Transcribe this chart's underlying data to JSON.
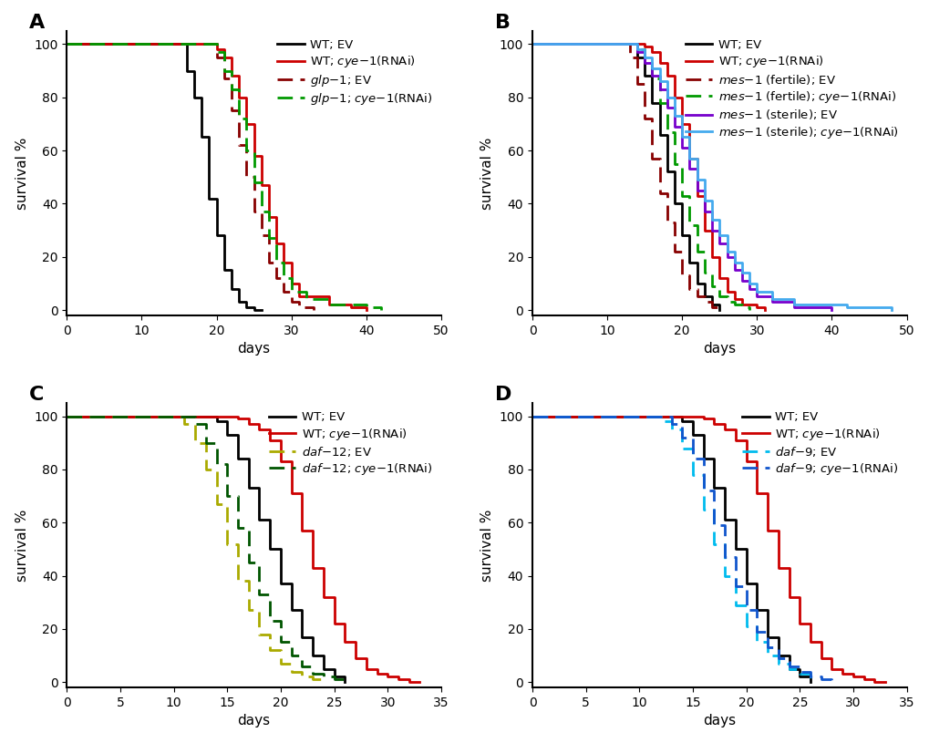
{
  "panels": {
    "A": {
      "title": "A",
      "xlim": [
        0,
        50
      ],
      "ylim": [
        -2,
        105
      ],
      "xticks": [
        0,
        10,
        20,
        30,
        40,
        50
      ],
      "yticks": [
        0,
        20,
        40,
        60,
        80,
        100
      ],
      "xlabel": "days",
      "ylabel": "survival %",
      "series": [
        {
          "label_parts": [
            [
              "WT; EV",
              false
            ]
          ],
          "color": "#000000",
          "linestyle": "solid",
          "x": [
            0,
            15,
            16,
            17,
            18,
            19,
            20,
            21,
            22,
            23,
            24,
            25,
            26
          ],
          "y": [
            100,
            100,
            90,
            80,
            65,
            42,
            28,
            15,
            8,
            3,
            1,
            0,
            0
          ]
        },
        {
          "label_parts": [
            [
              "WT; ",
              false
            ],
            [
              "cye-1",
              true
            ],
            [
              "(RNAi)",
              false
            ]
          ],
          "color": "#cc0000",
          "linestyle": "solid",
          "x": [
            0,
            19,
            20,
            21,
            22,
            23,
            24,
            25,
            26,
            27,
            28,
            29,
            30,
            31,
            35,
            38,
            40
          ],
          "y": [
            100,
            100,
            98,
            95,
            88,
            80,
            70,
            58,
            47,
            35,
            25,
            18,
            10,
            5,
            2,
            1,
            0
          ]
        },
        {
          "label_parts": [
            [
              "glp-1",
              true
            ],
            [
              "; EV",
              false
            ]
          ],
          "color": "#880000",
          "linestyle": "dashed",
          "x": [
            0,
            19,
            20,
            21,
            22,
            23,
            24,
            25,
            26,
            27,
            28,
            29,
            30,
            31,
            33
          ],
          "y": [
            100,
            100,
            95,
            87,
            75,
            62,
            50,
            37,
            28,
            18,
            12,
            7,
            3,
            1,
            0
          ]
        },
        {
          "label_parts": [
            [
              "glp-1",
              true
            ],
            [
              "; ",
              false
            ],
            [
              "cye-1",
              true
            ],
            [
              "(RNAi)",
              false
            ]
          ],
          "color": "#009900",
          "linestyle": "dashed",
          "x": [
            0,
            19,
            20,
            21,
            22,
            23,
            24,
            25,
            26,
            27,
            28,
            29,
            30,
            32,
            35,
            40,
            42
          ],
          "y": [
            100,
            100,
            97,
            90,
            83,
            72,
            60,
            48,
            37,
            27,
            18,
            12,
            7,
            4,
            2,
            1,
            0
          ]
        }
      ]
    },
    "B": {
      "title": "B",
      "xlim": [
        0,
        50
      ],
      "ylim": [
        -2,
        105
      ],
      "xticks": [
        0,
        10,
        20,
        30,
        40,
        50
      ],
      "yticks": [
        0,
        20,
        40,
        60,
        80,
        100
      ],
      "xlabel": "days",
      "ylabel": "survival %",
      "series": [
        {
          "label_parts": [
            [
              "WT; EV",
              false
            ]
          ],
          "color": "#000000",
          "linestyle": "solid",
          "x": [
            0,
            13,
            14,
            15,
            16,
            17,
            18,
            19,
            20,
            21,
            22,
            23,
            24,
            25
          ],
          "y": [
            100,
            100,
            95,
            88,
            78,
            66,
            52,
            40,
            28,
            18,
            10,
            5,
            2,
            0
          ]
        },
        {
          "label_parts": [
            [
              "WT; ",
              false
            ],
            [
              "cye-1",
              true
            ],
            [
              "(RNAi)",
              false
            ]
          ],
          "color": "#cc0000",
          "linestyle": "solid",
          "x": [
            0,
            14,
            15,
            16,
            17,
            18,
            19,
            20,
            21,
            22,
            23,
            24,
            25,
            26,
            27,
            28,
            30,
            31
          ],
          "y": [
            100,
            100,
            99,
            97,
            93,
            88,
            80,
            70,
            57,
            43,
            30,
            20,
            12,
            7,
            4,
            2,
            1,
            0
          ]
        },
        {
          "label_parts": [
            [
              "mes-1",
              true
            ],
            [
              " (fertile); EV",
              false
            ]
          ],
          "color": "#880000",
          "linestyle": "dashed",
          "x": [
            0,
            12,
            13,
            14,
            15,
            16,
            17,
            18,
            19,
            20,
            21,
            22,
            23,
            24,
            25
          ],
          "y": [
            100,
            100,
            95,
            85,
            72,
            57,
            44,
            33,
            22,
            13,
            8,
            5,
            3,
            1,
            0
          ]
        },
        {
          "label_parts": [
            [
              "mes-1",
              true
            ],
            [
              " (fertile); ",
              false
            ],
            [
              "cye-1",
              true
            ],
            [
              "(RNAi)",
              false
            ]
          ],
          "color": "#009900",
          "linestyle": "dashed",
          "x": [
            0,
            13,
            14,
            15,
            16,
            17,
            18,
            19,
            20,
            21,
            22,
            23,
            24,
            25,
            26,
            27,
            28,
            29
          ],
          "y": [
            100,
            100,
            98,
            93,
            87,
            78,
            67,
            55,
            43,
            32,
            22,
            14,
            9,
            5,
            3,
            2,
            1,
            0
          ]
        },
        {
          "label_parts": [
            [
              "mes-1",
              true
            ],
            [
              " (sterile); EV",
              false
            ]
          ],
          "color": "#7700cc",
          "linestyle": "solid",
          "x": [
            0,
            13,
            14,
            15,
            16,
            17,
            18,
            19,
            20,
            21,
            22,
            23,
            24,
            25,
            26,
            27,
            28,
            29,
            30,
            32,
            35,
            40
          ],
          "y": [
            100,
            100,
            97,
            93,
            88,
            83,
            76,
            69,
            61,
            53,
            45,
            37,
            30,
            25,
            20,
            15,
            11,
            8,
            5,
            3,
            1,
            0
          ]
        },
        {
          "label_parts": [
            [
              "mes-1",
              true
            ],
            [
              " (sterile); ",
              false
            ],
            [
              "cye-1",
              true
            ],
            [
              "(RNAi)",
              false
            ]
          ],
          "color": "#44aaee",
          "linestyle": "solid",
          "x": [
            0,
            13,
            14,
            15,
            16,
            17,
            18,
            19,
            20,
            21,
            22,
            23,
            24,
            25,
            26,
            27,
            28,
            29,
            30,
            32,
            35,
            42,
            48
          ],
          "y": [
            100,
            100,
            98,
            95,
            91,
            86,
            80,
            73,
            65,
            57,
            49,
            41,
            34,
            28,
            22,
            18,
            14,
            10,
            7,
            4,
            2,
            1,
            0
          ]
        }
      ]
    },
    "C": {
      "title": "C",
      "xlim": [
        0,
        35
      ],
      "ylim": [
        -2,
        105
      ],
      "xticks": [
        0,
        5,
        10,
        15,
        20,
        25,
        30,
        35
      ],
      "yticks": [
        0,
        20,
        40,
        60,
        80,
        100
      ],
      "xlabel": "days",
      "ylabel": "survival %",
      "series": [
        {
          "label_parts": [
            [
              "WT; EV",
              false
            ]
          ],
          "color": "#000000",
          "linestyle": "solid",
          "x": [
            0,
            13,
            14,
            15,
            16,
            17,
            18,
            19,
            20,
            21,
            22,
            23,
            24,
            25,
            26
          ],
          "y": [
            100,
            100,
            98,
            93,
            84,
            73,
            61,
            50,
            37,
            27,
            17,
            10,
            5,
            2,
            0
          ]
        },
        {
          "label_parts": [
            [
              "WT; ",
              false
            ],
            [
              "cye-1",
              true
            ],
            [
              "(RNAi)",
              false
            ]
          ],
          "color": "#cc0000",
          "linestyle": "solid",
          "x": [
            0,
            14,
            15,
            16,
            17,
            18,
            19,
            20,
            21,
            22,
            23,
            24,
            25,
            26,
            27,
            28,
            29,
            30,
            31,
            32,
            33
          ],
          "y": [
            100,
            100,
            100,
            99,
            97,
            95,
            91,
            83,
            71,
            57,
            43,
            32,
            22,
            15,
            9,
            5,
            3,
            2,
            1,
            0,
            0
          ]
        },
        {
          "label_parts": [
            [
              "daf-12",
              true
            ],
            [
              "; EV",
              false
            ]
          ],
          "color": "#aaaa00",
          "linestyle": "dashed",
          "x": [
            0,
            10,
            11,
            12,
            13,
            14,
            15,
            16,
            17,
            18,
            19,
            20,
            21,
            22,
            23,
            24
          ],
          "y": [
            100,
            100,
            97,
            90,
            80,
            67,
            52,
            38,
            27,
            18,
            12,
            7,
            4,
            2,
            1,
            0
          ]
        },
        {
          "label_parts": [
            [
              "daf-12",
              true
            ],
            [
              "; ",
              false
            ],
            [
              "cye-1",
              true
            ],
            [
              "(RNAi)",
              false
            ]
          ],
          "color": "#005500",
          "linestyle": "dashed",
          "x": [
            0,
            11,
            12,
            13,
            14,
            15,
            16,
            17,
            18,
            19,
            20,
            21,
            22,
            23,
            24,
            25,
            26
          ],
          "y": [
            100,
            100,
            97,
            90,
            82,
            70,
            58,
            45,
            33,
            23,
            15,
            10,
            6,
            3,
            2,
            1,
            0
          ]
        }
      ]
    },
    "D": {
      "title": "D",
      "xlim": [
        0,
        35
      ],
      "ylim": [
        -2,
        105
      ],
      "xticks": [
        0,
        5,
        10,
        15,
        20,
        25,
        30,
        35
      ],
      "yticks": [
        0,
        20,
        40,
        60,
        80,
        100
      ],
      "xlabel": "days",
      "ylabel": "survival %",
      "series": [
        {
          "label_parts": [
            [
              "WT; EV",
              false
            ]
          ],
          "color": "#000000",
          "linestyle": "solid",
          "x": [
            0,
            13,
            14,
            15,
            16,
            17,
            18,
            19,
            20,
            21,
            22,
            23,
            24,
            25,
            26
          ],
          "y": [
            100,
            100,
            98,
            93,
            84,
            73,
            61,
            50,
            37,
            27,
            17,
            10,
            5,
            2,
            0
          ]
        },
        {
          "label_parts": [
            [
              "WT; ",
              false
            ],
            [
              "cye-1",
              true
            ],
            [
              "(RNAi)",
              false
            ]
          ],
          "color": "#cc0000",
          "linestyle": "solid",
          "x": [
            0,
            14,
            15,
            16,
            17,
            18,
            19,
            20,
            21,
            22,
            23,
            24,
            25,
            26,
            27,
            28,
            29,
            30,
            31,
            32,
            33
          ],
          "y": [
            100,
            100,
            100,
            99,
            97,
            95,
            91,
            83,
            71,
            57,
            43,
            32,
            22,
            15,
            9,
            5,
            3,
            2,
            1,
            0,
            0
          ]
        },
        {
          "label_parts": [
            [
              "daf-9",
              true
            ],
            [
              "; EV",
              false
            ]
          ],
          "color": "#00bbee",
          "linestyle": "dashed",
          "x": [
            0,
            11,
            12,
            13,
            14,
            15,
            16,
            17,
            18,
            19,
            20,
            21,
            22,
            23,
            24,
            25,
            26
          ],
          "y": [
            100,
            100,
            98,
            95,
            88,
            78,
            65,
            52,
            40,
            29,
            21,
            15,
            10,
            7,
            5,
            3,
            0
          ]
        },
        {
          "label_parts": [
            [
              "daf-9",
              true
            ],
            [
              "; ",
              false
            ],
            [
              "cye-1",
              true
            ],
            [
              "(RNAi)",
              false
            ]
          ],
          "color": "#1155cc",
          "linestyle": "dashed",
          "x": [
            0,
            12,
            13,
            14,
            15,
            16,
            17,
            18,
            19,
            20,
            21,
            22,
            23,
            24,
            25,
            26,
            27,
            28
          ],
          "y": [
            100,
            100,
            97,
            92,
            84,
            72,
            59,
            47,
            36,
            27,
            19,
            13,
            9,
            6,
            4,
            2,
            1,
            0
          ]
        }
      ]
    }
  },
  "legend_fontsize": 9.5,
  "axis_fontsize": 11,
  "tick_fontsize": 10,
  "linewidth": 2.0,
  "background_color": "#ffffff"
}
